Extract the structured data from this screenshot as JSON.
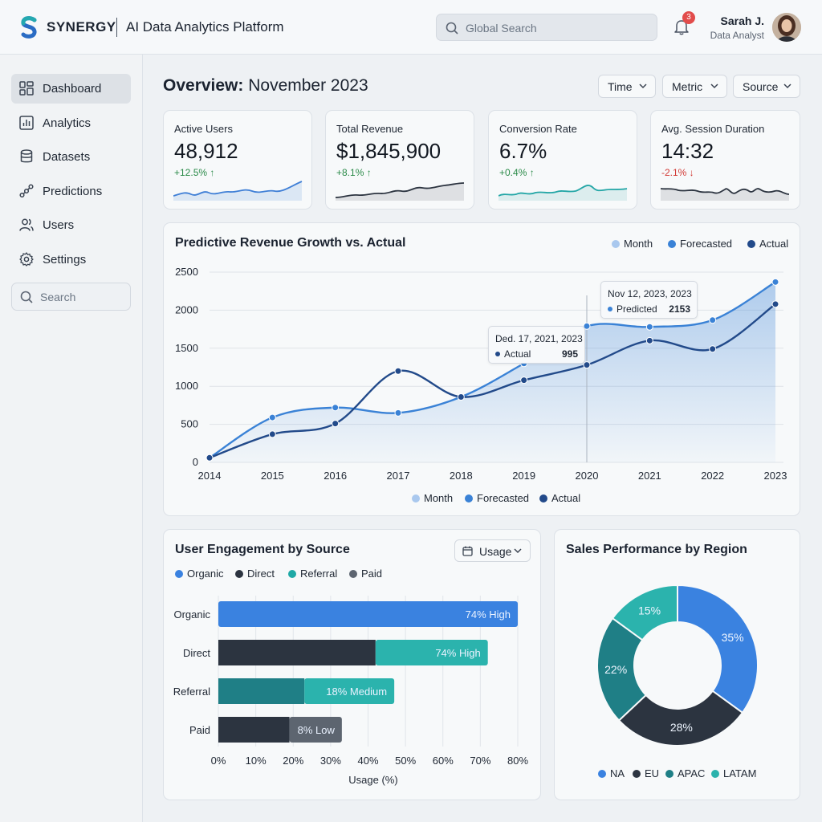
{
  "header": {
    "brand": "SYNERGY",
    "app_title": "AI Data Analytics Platform",
    "search_placeholder": "Global Search",
    "notifications_count": "3",
    "user_name": "Sarah J.",
    "user_role": "Data Analyst"
  },
  "sidebar": {
    "items": [
      {
        "label": "Dashboard",
        "icon": "grid-icon",
        "active": true
      },
      {
        "label": "Analytics",
        "icon": "bar-chart-icon",
        "active": false
      },
      {
        "label": "Datasets",
        "icon": "database-icon",
        "active": false
      },
      {
        "label": "Predictions",
        "icon": "nodes-icon",
        "active": false
      },
      {
        "label": "Users",
        "icon": "users-icon",
        "active": false
      },
      {
        "label": "Settings",
        "icon": "gear-icon",
        "active": false
      }
    ],
    "search_placeholder": "Search"
  },
  "page": {
    "title_bold": "Overview:",
    "title_rest": " November 2023",
    "filters": [
      "Time",
      "Metric",
      "Source"
    ]
  },
  "kpis": [
    {
      "label": "Active Users",
      "value": "48,912",
      "change": "+12.5% ↑",
      "trend": "up",
      "color": "#3f7fd6"
    },
    {
      "label": "Total Revenue",
      "value": "$1,845,900",
      "change": "+8.1% ↑",
      "trend": "up",
      "color": "#2c3440"
    },
    {
      "label": "Conversion Rate",
      "value": "6.7%",
      "change": "+0.4% ↑",
      "trend": "up",
      "color": "#23a6a6"
    },
    {
      "label": "Avg. Session Duration",
      "value": "14:32",
      "change": "-2.1% ↓",
      "trend": "down",
      "color": "#2c3440"
    }
  ],
  "revenue_chart": {
    "title": "Predictive Revenue Growth vs. Actual",
    "legend": [
      "Month",
      "Forecasted",
      "Actual"
    ],
    "tooltip1": {
      "title": "Ded. 17, 2021, 2023",
      "label": "Actual",
      "value": "995"
    },
    "tooltip2": {
      "title": "Nov 12, 2023, 2023",
      "label": "Predicted",
      "value": "2153"
    }
  },
  "engagement": {
    "title": "User Engagement by Source",
    "button": "Usage",
    "legend": [
      "Organic",
      "Direct",
      "Referral",
      "Paid"
    ],
    "xlabel": "Usage (%)"
  },
  "region": {
    "title": "Sales Performance by Region",
    "legend": [
      "NA",
      "EU",
      "APAC",
      "LATAM"
    ]
  },
  "colors": {
    "accent": "#3a82e0",
    "dark": "#2c3440",
    "teal": "#1f7f86",
    "teal_light": "#2bb3ad",
    "light_blue": "#a9c8ee",
    "navy": "#224a8a"
  },
  "chart_data": [
    {
      "type": "line",
      "title": "Predictive Revenue Growth vs. Actual",
      "x": [
        "2014",
        "2015",
        "2016",
        "2017",
        "2018",
        "2019",
        "2020",
        "2021",
        "2022",
        "2023"
      ],
      "xpoints": [
        2014,
        2015,
        2016,
        2017,
        2018,
        2019,
        2020,
        2021,
        2022,
        2023
      ],
      "ylim": [
        0,
        2500
      ],
      "yticks": [
        0,
        500,
        1000,
        1500,
        2000,
        2500
      ],
      "series": [
        {
          "name": "Forecasted",
          "color": "#3a82d6",
          "points": [
            [
              2014,
              60
            ],
            [
              2015,
              590
            ],
            [
              2016,
              720
            ],
            [
              2017,
              650
            ],
            [
              2018,
              860
            ],
            [
              2019,
              1300
            ],
            [
              2020,
              1790
            ],
            [
              2021,
              1780
            ],
            [
              2022,
              1870
            ],
            [
              2023,
              2370
            ]
          ]
        },
        {
          "name": "Actual",
          "color": "#224a8a",
          "points": [
            [
              2014,
              60
            ],
            [
              2015,
              370
            ],
            [
              2016,
              510
            ],
            [
              2017,
              1200
            ],
            [
              2018,
              860
            ],
            [
              2019,
              1080
            ],
            [
              2020,
              1280
            ],
            [
              2021,
              1600
            ],
            [
              2022,
              1490
            ],
            [
              2023,
              2080
            ]
          ]
        }
      ],
      "highlight_x": 2020
    },
    {
      "type": "bar",
      "title": "User Engagement by Source",
      "categories": [
        "Organic",
        "Direct",
        "Referral",
        "Paid"
      ],
      "xlim": [
        0,
        80
      ],
      "xticks": [
        "0%",
        "10%",
        "20%",
        "30%",
        "40%",
        "50%",
        "60%",
        "70%",
        "80%"
      ],
      "xlabel": "Usage (%)",
      "stacks": [
        [
          {
            "value": 80,
            "color": "#3a82e0"
          }
        ],
        [
          {
            "value": 42,
            "color": "#2c3440"
          },
          {
            "value": 30,
            "color": "#2bb3ad"
          }
        ],
        [
          {
            "value": 23,
            "color": "#1f7f86"
          },
          {
            "value": 24,
            "color": "#2bb3ad"
          }
        ],
        [
          {
            "value": 19,
            "color": "#2c3440"
          },
          {
            "value": 14,
            "color": "#5d6570"
          }
        ]
      ],
      "labels": [
        "74% High",
        "74% High",
        "18% Medium",
        "8% Low"
      ]
    },
    {
      "type": "pie",
      "title": "Sales Performance by Region",
      "slices": [
        {
          "name": "NA",
          "value": 35,
          "label": "35%",
          "color": "#3a82e0"
        },
        {
          "name": "EU",
          "value": 28,
          "label": "28%",
          "color": "#2c3440"
        },
        {
          "name": "APAC",
          "value": 22,
          "label": "22%",
          "color": "#1f7f86"
        },
        {
          "name": "LATAM",
          "value": 15,
          "label": "15%",
          "color": "#2bb3ad"
        }
      ]
    }
  ]
}
